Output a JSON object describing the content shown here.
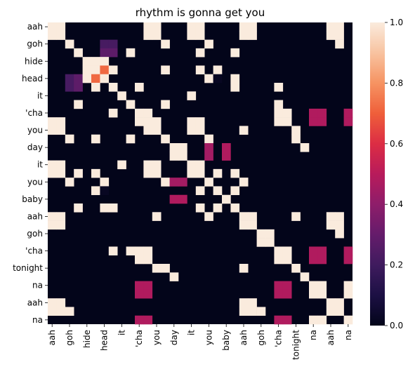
{
  "chart_data": {
    "type": "heatmap",
    "title": "rhythm is gonna get you",
    "labels": [
      "aah",
      "",
      "goh",
      "",
      "hide",
      "",
      "head",
      "",
      "it",
      "",
      "'cha",
      "",
      "you",
      "",
      "day",
      "",
      "it",
      "",
      "you",
      "",
      "baby",
      "",
      "aah",
      "",
      "goh",
      "",
      "'cha",
      "",
      "tonight",
      "",
      "na",
      "",
      "aah",
      "",
      "na"
    ],
    "x_tick_labels": [
      "aah",
      "goh",
      "hide",
      "head",
      "it",
      "'cha",
      "you",
      "day",
      "it",
      "you",
      "baby",
      "aah",
      "goh",
      "'cha",
      "tonight",
      "na",
      "aah",
      "na"
    ],
    "y_tick_labels": [
      "aah",
      "goh",
      "hide",
      "head",
      "it",
      "'cha",
      "you",
      "day",
      "it",
      "you",
      "baby",
      "aah",
      "goh",
      "'cha",
      "tonight",
      "na",
      "aah",
      "na"
    ],
    "colorbar": {
      "min": 0.0,
      "max": 1.0,
      "ticks": [
        "0.0",
        "0.2",
        "0.4",
        "0.6",
        "0.8",
        "1.0"
      ]
    },
    "colormap": "rocket",
    "grid": false,
    "cells": [
      [
        0,
        0,
        1
      ],
      [
        0,
        1,
        1
      ],
      [
        1,
        0,
        1
      ],
      [
        1,
        1,
        1
      ],
      [
        0,
        11,
        1
      ],
      [
        0,
        12,
        1
      ],
      [
        1,
        11,
        1
      ],
      [
        1,
        12,
        1
      ],
      [
        0,
        16,
        1
      ],
      [
        0,
        17,
        1
      ],
      [
        1,
        16,
        1
      ],
      [
        1,
        17,
        1
      ],
      [
        11,
        0,
        1
      ],
      [
        11,
        1,
        1
      ],
      [
        12,
        0,
        1
      ],
      [
        12,
        1,
        1
      ],
      [
        11,
        11,
        1
      ],
      [
        11,
        12,
        1
      ],
      [
        12,
        11,
        1
      ],
      [
        12,
        12,
        1
      ],
      [
        11,
        16,
        1
      ],
      [
        11,
        17,
        1
      ],
      [
        12,
        16,
        1
      ],
      [
        12,
        17,
        1
      ],
      [
        16,
        0,
        1
      ],
      [
        16,
        1,
        1
      ],
      [
        17,
        0,
        1
      ],
      [
        17,
        1,
        1
      ],
      [
        16,
        11,
        1
      ],
      [
        16,
        12,
        1
      ],
      [
        17,
        11,
        1
      ],
      [
        17,
        12,
        1
      ],
      [
        16,
        16,
        1
      ],
      [
        16,
        17,
        1
      ],
      [
        17,
        16,
        1
      ],
      [
        17,
        17,
        1
      ],
      [
        2,
        2,
        1
      ],
      [
        2,
        13,
        1
      ],
      [
        2,
        18,
        1
      ],
      [
        13,
        2,
        1
      ],
      [
        13,
        13,
        1
      ],
      [
        13,
        18,
        1
      ],
      [
        18,
        2,
        1
      ],
      [
        18,
        13,
        1
      ],
      [
        18,
        18,
        1
      ],
      [
        3,
        3,
        1
      ],
      [
        4,
        4,
        1
      ],
      [
        5,
        5,
        1
      ],
      [
        6,
        6,
        1
      ],
      [
        7,
        7,
        1
      ],
      [
        8,
        8,
        1
      ],
      [
        9,
        9,
        1
      ],
      [
        10,
        10,
        1
      ],
      [
        3,
        6,
        0.28
      ],
      [
        3,
        7,
        0.28
      ],
      [
        4,
        4,
        1
      ],
      [
        5,
        5,
        1
      ],
      [
        5,
        6,
        0.62
      ],
      [
        6,
        5,
        0.72
      ],
      [
        6,
        6,
        1
      ],
      [
        4,
        4,
        1
      ],
      [
        5,
        5,
        1
      ],
      [
        6,
        2,
        0.22
      ],
      [
        7,
        2,
        0.22
      ],
      [
        6,
        19,
        0.02
      ],
      [
        5,
        4,
        1
      ],
      [
        5,
        7,
        1
      ],
      [
        5,
        13,
        1
      ],
      [
        5,
        19,
        1
      ],
      [
        6,
        21,
        1
      ],
      [
        6,
        4,
        1
      ],
      [
        7,
        10,
        1
      ],
      [
        7,
        26,
        1
      ],
      [
        9,
        3,
        1
      ],
      [
        9,
        13,
        1
      ],
      [
        9,
        26,
        1
      ],
      [
        7,
        10,
        1
      ],
      [
        10,
        10,
        1
      ],
      [
        10,
        11,
        1
      ],
      [
        11,
        10,
        1
      ],
      [
        11,
        11,
        1
      ],
      [
        10,
        26,
        1
      ],
      [
        10,
        27,
        1
      ],
      [
        11,
        26,
        1
      ],
      [
        11,
        27,
        1
      ],
      [
        10,
        30,
        0.48
      ],
      [
        10,
        31,
        0.48
      ],
      [
        11,
        30,
        0.48
      ],
      [
        11,
        31,
        0.48
      ],
      [
        10,
        34,
        0.48
      ],
      [
        11,
        34,
        0.48
      ],
      [
        12,
        12,
        1
      ],
      [
        12,
        22,
        1
      ],
      [
        13,
        13,
        1
      ],
      [
        13,
        28,
        1
      ],
      [
        14,
        14,
        1
      ],
      [
        14,
        15,
        1
      ],
      [
        15,
        14,
        0.45
      ],
      [
        15,
        15,
        1
      ],
      [
        14,
        18,
        0.45
      ],
      [
        15,
        18,
        0.45
      ],
      [
        16,
        8,
        1
      ],
      [
        16,
        16,
        1
      ],
      [
        16,
        17,
        1
      ],
      [
        17,
        17,
        1
      ],
      [
        17,
        3,
        1
      ],
      [
        17,
        5,
        1
      ],
      [
        17,
        11,
        1
      ],
      [
        17,
        19,
        1
      ],
      [
        18,
        18,
        1
      ],
      [
        18,
        6,
        1
      ],
      [
        18,
        22,
        1
      ],
      [
        19,
        19,
        1
      ],
      [
        20,
        20,
        1
      ],
      [
        20,
        14,
        0.48
      ],
      [
        20,
        15,
        0.48
      ],
      [
        21,
        21,
        1
      ],
      [
        21,
        3,
        1
      ],
      [
        21,
        7,
        1
      ],
      [
        21,
        17,
        1
      ],
      [
        21,
        19,
        1
      ],
      [
        22,
        22,
        1
      ],
      [
        22,
        23,
        1
      ],
      [
        23,
        22,
        1
      ],
      [
        23,
        23,
        1
      ],
      [
        22,
        0,
        1
      ],
      [
        22,
        1,
        1
      ],
      [
        23,
        0,
        1
      ],
      [
        23,
        1,
        1
      ],
      [
        22,
        32,
        1
      ],
      [
        22,
        33,
        1
      ],
      [
        23,
        32,
        1
      ],
      [
        23,
        33,
        1
      ],
      [
        24,
        24,
        1
      ],
      [
        24,
        25,
        1
      ],
      [
        25,
        24,
        1
      ],
      [
        24,
        33,
        1
      ],
      [
        26,
        26,
        1
      ],
      [
        26,
        27,
        1
      ],
      [
        27,
        26,
        1
      ],
      [
        27,
        27,
        1
      ],
      [
        26,
        10,
        1
      ],
      [
        26,
        11,
        1
      ],
      [
        27,
        10,
        1
      ],
      [
        27,
        11,
        1
      ],
      [
        26,
        30,
        0.48
      ],
      [
        26,
        31,
        0.48
      ],
      [
        27,
        30,
        0.48
      ],
      [
        27,
        31,
        0.48
      ],
      [
        26,
        34,
        0.48
      ],
      [
        27,
        34,
        0.48
      ],
      [
        28,
        28,
        1
      ],
      [
        28,
        12,
        1
      ],
      [
        28,
        22,
        1
      ],
      [
        29,
        29,
        1
      ],
      [
        29,
        14,
        1
      ],
      [
        30,
        30,
        1
      ],
      [
        30,
        31,
        1
      ],
      [
        31,
        30,
        1
      ],
      [
        31,
        31,
        1
      ],
      [
        30,
        10,
        0.48
      ],
      [
        30,
        11,
        0.48
      ],
      [
        31,
        10,
        0.48
      ],
      [
        31,
        11,
        0.48
      ],
      [
        30,
        26,
        0.48
      ],
      [
        30,
        27,
        0.48
      ],
      [
        31,
        26,
        0.48
      ],
      [
        31,
        27,
        0.48
      ],
      [
        30,
        34,
        1
      ],
      [
        31,
        34,
        1
      ],
      [
        32,
        32,
        1
      ],
      [
        32,
        33,
        1
      ],
      [
        33,
        32,
        1
      ],
      [
        33,
        33,
        1
      ],
      [
        32,
        0,
        1
      ],
      [
        32,
        1,
        1
      ],
      [
        33,
        0,
        1
      ],
      [
        33,
        1,
        1
      ],
      [
        32,
        22,
        1
      ],
      [
        32,
        23,
        1
      ],
      [
        33,
        22,
        1
      ],
      [
        33,
        23,
        1
      ],
      [
        33,
        2,
        1
      ],
      [
        33,
        24,
        1
      ],
      [
        34,
        34,
        1
      ],
      [
        34,
        10,
        0.48
      ],
      [
        34,
        11,
        0.48
      ],
      [
        34,
        26,
        0.48
      ],
      [
        34,
        27,
        0.48
      ],
      [
        34,
        30,
        1
      ],
      [
        34,
        31,
        1
      ]
    ],
    "size": 35
  }
}
